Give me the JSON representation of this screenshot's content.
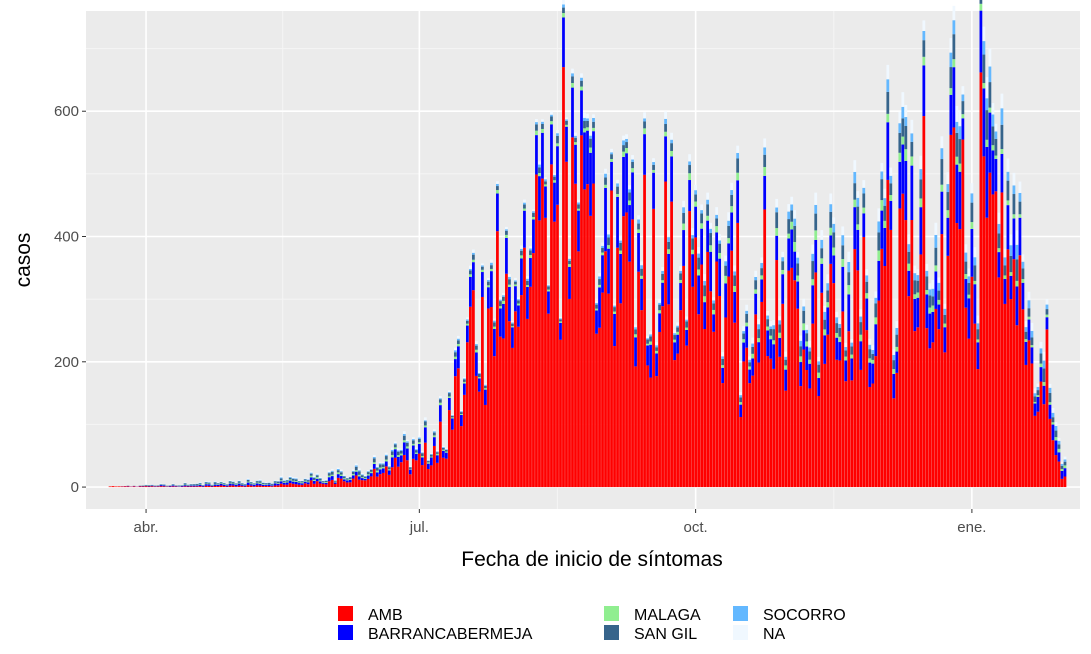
{
  "chart_data": {
    "type": "bar",
    "stacked": true,
    "title": "",
    "xlabel": "Fecha de inicio de síntomas",
    "ylabel": "casos",
    "x_start": "2020-03-20",
    "x_end": "2021-02-01",
    "xlim": [
      "2020-03-12",
      "2021-02-06"
    ],
    "ylim": [
      -35,
      760
    ],
    "x_ticks": [
      {
        "date": "2020-04-01",
        "label": "abr."
      },
      {
        "date": "2020-07-01",
        "label": "jul."
      },
      {
        "date": "2020-10-01",
        "label": "oct."
      },
      {
        "date": "2021-01-01",
        "label": "ene."
      }
    ],
    "y_ticks": [
      0,
      200,
      400,
      600
    ],
    "y_tick_labels": [
      "0",
      "200",
      "400",
      "600"
    ],
    "grid": true,
    "legend_position": "bottom",
    "series": [
      {
        "name": "AMB",
        "color": "#ff0000",
        "keyframes": [
          {
            "date": "2020-03-20",
            "value": 1
          },
          {
            "date": "2020-04-15",
            "value": 1
          },
          {
            "date": "2020-05-15",
            "value": 3
          },
          {
            "date": "2020-06-10",
            "value": 12
          },
          {
            "date": "2020-06-25",
            "value": 30
          },
          {
            "date": "2020-07-05",
            "value": 55
          },
          {
            "date": "2020-07-20",
            "value": 200
          },
          {
            "date": "2020-08-10",
            "value": 400
          },
          {
            "date": "2020-08-20",
            "value": 430
          },
          {
            "date": "2020-09-10",
            "value": 330
          },
          {
            "date": "2020-10-10",
            "value": 270
          },
          {
            "date": "2020-11-10",
            "value": 250
          },
          {
            "date": "2020-12-15",
            "value": 310
          },
          {
            "date": "2021-01-05",
            "value": 400
          },
          {
            "date": "2021-01-20",
            "value": 200
          },
          {
            "date": "2021-01-31",
            "value": 15
          }
        ]
      },
      {
        "name": "BARRANCABERMEJA",
        "color": "#0000ff",
        "keyframes": [
          {
            "date": "2020-03-20",
            "value": 0
          },
          {
            "date": "2020-06-15",
            "value": 5
          },
          {
            "date": "2020-07-15",
            "value": 25
          },
          {
            "date": "2020-08-15",
            "value": 60
          },
          {
            "date": "2020-09-01",
            "value": 75
          },
          {
            "date": "2020-10-01",
            "value": 45
          },
          {
            "date": "2020-11-01",
            "value": 40
          },
          {
            "date": "2020-12-10",
            "value": 60
          },
          {
            "date": "2021-01-05",
            "value": 70
          },
          {
            "date": "2021-01-31",
            "value": 10
          }
        ]
      },
      {
        "name": "MALAGA",
        "color": "#90ee90",
        "keyframes": [
          {
            "date": "2020-03-20",
            "value": 0
          },
          {
            "date": "2020-07-15",
            "value": 3
          },
          {
            "date": "2020-09-15",
            "value": 6
          },
          {
            "date": "2020-12-15",
            "value": 12
          },
          {
            "date": "2021-01-31",
            "value": 3
          }
        ]
      },
      {
        "name": "SAN GIL",
        "color": "#36648b",
        "keyframes": [
          {
            "date": "2020-03-20",
            "value": 0
          },
          {
            "date": "2020-07-15",
            "value": 5
          },
          {
            "date": "2020-09-15",
            "value": 10
          },
          {
            "date": "2020-12-15",
            "value": 25
          },
          {
            "date": "2021-01-10",
            "value": 30
          },
          {
            "date": "2021-01-31",
            "value": 5
          }
        ]
      },
      {
        "name": "SOCORRO",
        "color": "#63b8ff",
        "keyframes": [
          {
            "date": "2020-03-20",
            "value": 0
          },
          {
            "date": "2020-07-15",
            "value": 2
          },
          {
            "date": "2020-10-15",
            "value": 6
          },
          {
            "date": "2020-12-15",
            "value": 15
          },
          {
            "date": "2021-01-10",
            "value": 18
          },
          {
            "date": "2021-01-31",
            "value": 3
          }
        ]
      },
      {
        "name": "NA",
        "color": "#f0f8ff",
        "keyframes": [
          {
            "date": "2020-03-20",
            "value": 0
          },
          {
            "date": "2020-08-15",
            "value": 4
          },
          {
            "date": "2020-12-15",
            "value": 15
          },
          {
            "date": "2021-01-10",
            "value": 20
          },
          {
            "date": "2021-01-31",
            "value": 3
          }
        ]
      }
    ],
    "peaks": [
      {
        "series": "AMB",
        "date": "2020-07-29",
        "total": 310
      },
      {
        "series": "AMB",
        "date": "2020-08-10",
        "total": 520
      },
      {
        "series": "AMB",
        "date": "2020-08-16",
        "total": 570
      },
      {
        "series": "AMB",
        "date": "2020-08-19",
        "total": 590
      },
      {
        "series": "AMB",
        "date": "2020-08-25",
        "total": 598
      },
      {
        "series": "AMB",
        "date": "2020-08-28",
        "total": 595
      },
      {
        "series": "AMB",
        "date": "2020-09-03",
        "total": 540
      },
      {
        "series": "AMB",
        "date": "2020-09-10",
        "total": 530
      },
      {
        "series": "AMB",
        "date": "2020-09-17",
        "total": 525
      },
      {
        "series": "AMB",
        "date": "2020-10-05",
        "total": 470
      },
      {
        "series": "AMB",
        "date": "2020-10-15",
        "total": 545
      },
      {
        "series": "AMB",
        "date": "2020-10-28",
        "total": 460
      },
      {
        "series": "AMB",
        "date": "2020-11-10",
        "total": 470
      },
      {
        "series": "AMB",
        "date": "2020-11-26",
        "total": 490
      },
      {
        "series": "AMB",
        "date": "2020-12-05",
        "total": 510
      },
      {
        "series": "AMB",
        "date": "2020-12-10",
        "total": 610
      },
      {
        "series": "AMB",
        "date": "2020-12-16",
        "total": 745
      },
      {
        "series": "AMB",
        "date": "2020-12-22",
        "total": 560
      },
      {
        "series": "AMB",
        "date": "2020-12-29",
        "total": 640
      },
      {
        "series": "AMB",
        "date": "2021-01-05",
        "total": 735
      },
      {
        "series": "AMB",
        "date": "2021-01-07",
        "total": 700
      },
      {
        "series": "AMB",
        "date": "2021-01-09",
        "total": 580
      },
      {
        "series": "AMB",
        "date": "2021-01-16",
        "total": 410
      },
      {
        "series": "AMB",
        "date": "2021-01-26",
        "total": 300
      }
    ]
  }
}
